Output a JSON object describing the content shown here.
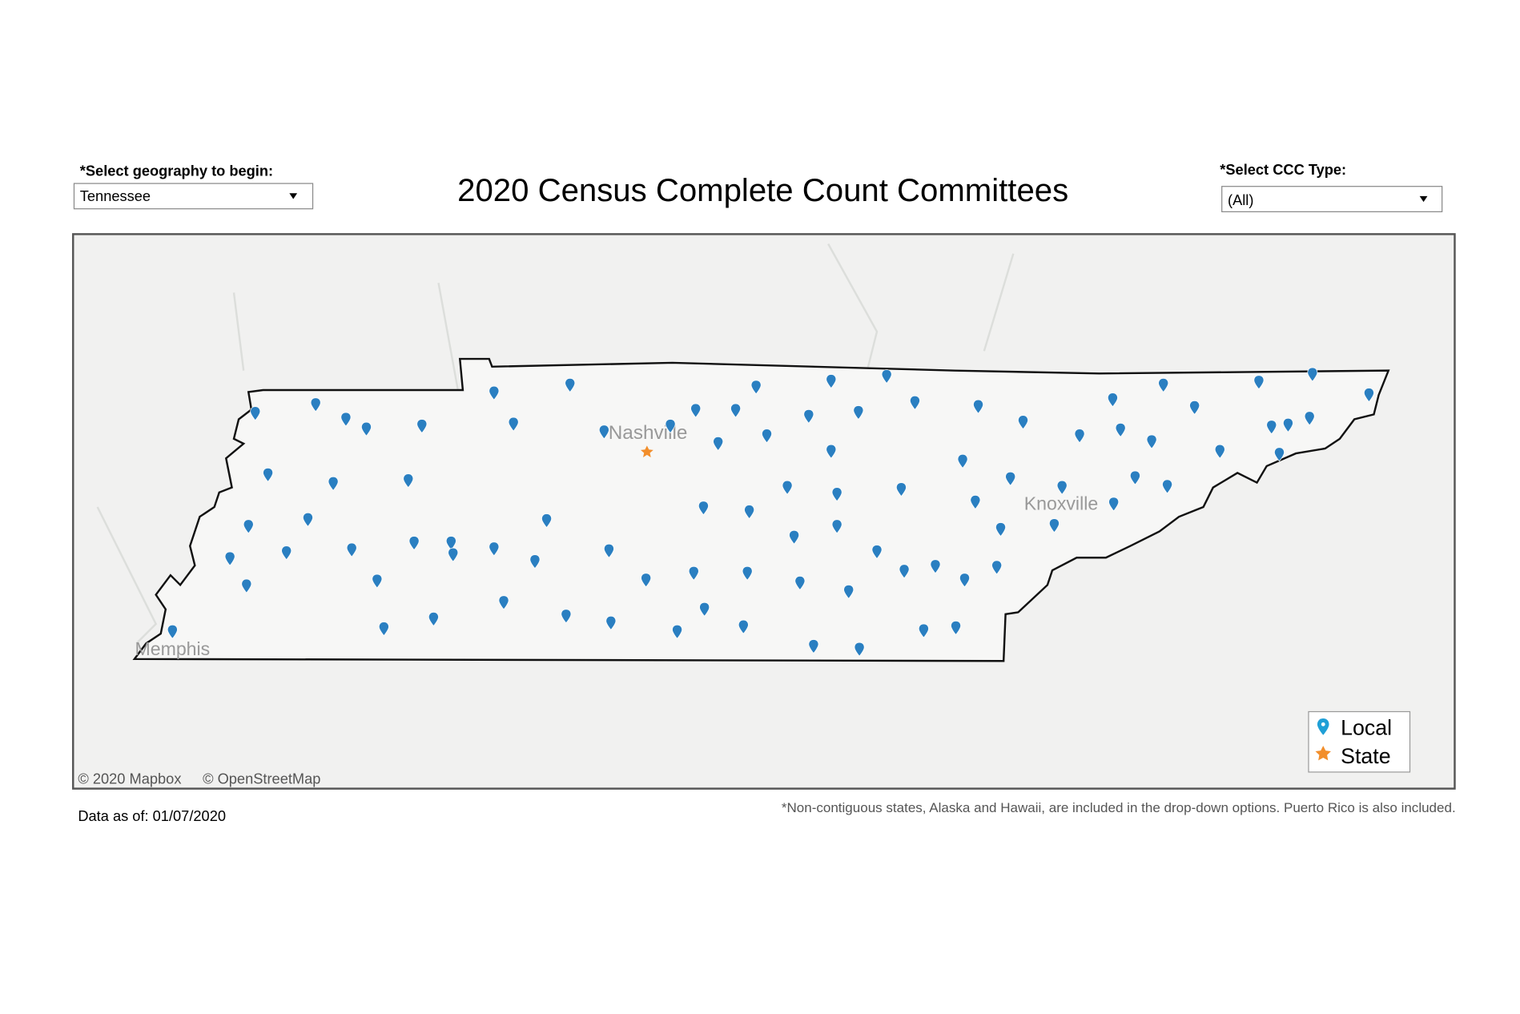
{
  "header": {
    "title": "2020 Census Complete Count Committees",
    "geography_label": "*Select geography to begin:",
    "geography_value": "Tennessee",
    "type_label": "*Select CCC Type:",
    "type_value": "(All)"
  },
  "map": {
    "cities": [
      "Nashville",
      "Knoxville",
      "Memphis"
    ],
    "attribution": [
      "© 2020 Mapbox",
      "© OpenStreetMap"
    ],
    "legend": [
      "Local",
      "State"
    ]
  },
  "footer": {
    "data_as_of": "Data as of: 01/07/2020",
    "note": "*Non-contiguous states, Alaska and Hawaii, are included in the drop-down options. Puerto Rico is also included."
  }
}
